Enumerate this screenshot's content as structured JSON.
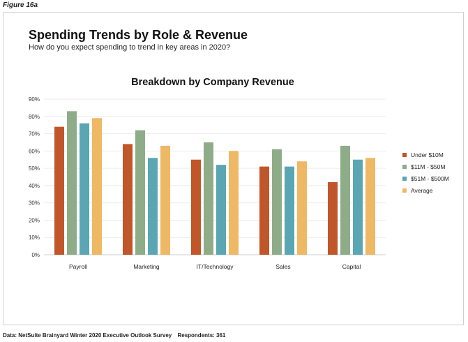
{
  "figure_label": "Figure 16a",
  "header": {
    "title": "Spending Trends by Role & Revenue",
    "subtitle": "How do you expect spending to trend in key areas in 2020?"
  },
  "footer": {
    "source": "Data: NetSuite Brainyard Winter 2020 Executive Outlook Survey",
    "respondents": "Respondents: 361"
  },
  "chart_data": {
    "type": "bar",
    "title": "Breakdown by Company Revenue",
    "xlabel": "",
    "ylabel": "",
    "ylim": [
      0,
      90
    ],
    "yticks": [
      0,
      10,
      20,
      30,
      40,
      50,
      60,
      70,
      80,
      90
    ],
    "ytick_suffix": "%",
    "grid": true,
    "legend_position": "right",
    "categories": [
      "Payroll",
      "Marketing",
      "IT/Technology",
      "Sales",
      "Capital"
    ],
    "series": [
      {
        "name": "Under $10M",
        "color": "#c0562a",
        "values": [
          74,
          64,
          55,
          51,
          42
        ]
      },
      {
        "name": "$11M - $50M",
        "color": "#8fac89",
        "values": [
          83,
          72,
          65,
          61,
          63
        ]
      },
      {
        "name": "$51M - $500M",
        "color": "#5ba6b3",
        "values": [
          76,
          56,
          52,
          51,
          55
        ]
      },
      {
        "name": "Average",
        "color": "#efb865",
        "values": [
          79,
          63,
          60,
          54,
          56
        ]
      }
    ]
  }
}
